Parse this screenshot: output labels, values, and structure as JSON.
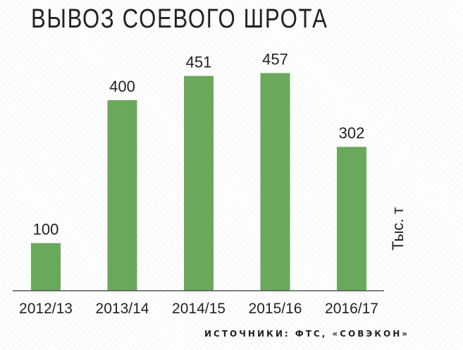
{
  "title": "ВЫВОЗ СОЕВОГО ШРОТА",
  "unit_label": "Тыс. т",
  "source": "ИСТОЧНИКИ: ФТС, «СОВЭКОН»",
  "colors": {
    "bar": "#6aa85c",
    "axis": "#555555",
    "text": "#222222"
  },
  "chart_data": {
    "type": "bar",
    "title": "ВЫВОЗ СОЕВОГО ШРОТА",
    "categories": [
      "2012/13",
      "2013/14",
      "2014/15",
      "2015/16",
      "2016/17"
    ],
    "values": [
      100,
      400,
      451,
      457,
      302
    ],
    "ylabel": "Тыс. т",
    "xlabel": "",
    "ylim": [
      0,
      500
    ],
    "grid": false,
    "data_labels": true
  }
}
